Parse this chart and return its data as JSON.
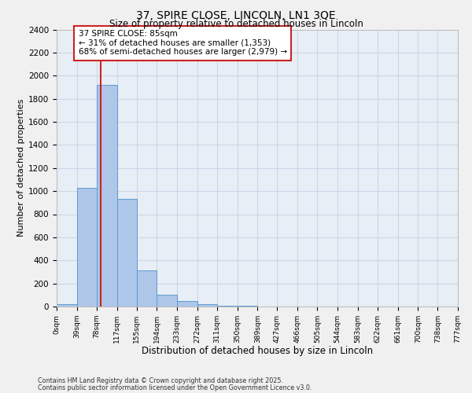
{
  "title1": "37, SPIRE CLOSE, LINCOLN, LN1 3QE",
  "title2": "Size of property relative to detached houses in Lincoln",
  "xlabel": "Distribution of detached houses by size in Lincoln",
  "ylabel": "Number of detached properties",
  "bar_edges": [
    0,
    39,
    78,
    117,
    155,
    194,
    233,
    272,
    311,
    350,
    389,
    427,
    466,
    505,
    544,
    583,
    622,
    661,
    700,
    738,
    777
  ],
  "bar_heights": [
    20,
    1030,
    1920,
    930,
    315,
    105,
    50,
    20,
    10,
    5,
    0,
    0,
    0,
    0,
    0,
    0,
    0,
    0,
    0,
    0
  ],
  "bar_color": "#aec6e8",
  "bar_edge_color": "#5b9bd5",
  "grid_color": "#c8d8e8",
  "bg_color": "#e8eef5",
  "fig_color": "#f0f0f0",
  "property_size": 85,
  "red_line_color": "#cc2222",
  "ann_line1": "37 SPIRE CLOSE: 85sqm",
  "ann_line2": "← 31% of detached houses are smaller (1,353)",
  "ann_line3": "68% of semi-detached houses are larger (2,979) →",
  "annotation_box_color": "#ffffff",
  "annotation_box_edge": "#cc2222",
  "ylim": [
    0,
    2400
  ],
  "yticks": [
    0,
    200,
    400,
    600,
    800,
    1000,
    1200,
    1400,
    1600,
    1800,
    2000,
    2200,
    2400
  ],
  "tick_labels": [
    "0sqm",
    "39sqm",
    "78sqm",
    "117sqm",
    "155sqm",
    "194sqm",
    "233sqm",
    "272sqm",
    "311sqm",
    "350sqm",
    "389sqm",
    "427sqm",
    "466sqm",
    "505sqm",
    "544sqm",
    "583sqm",
    "622sqm",
    "661sqm",
    "700sqm",
    "738sqm",
    "777sqm"
  ],
  "footnote1": "Contains HM Land Registry data © Crown copyright and database right 2025.",
  "footnote2": "Contains public sector information licensed under the Open Government Licence v3.0."
}
